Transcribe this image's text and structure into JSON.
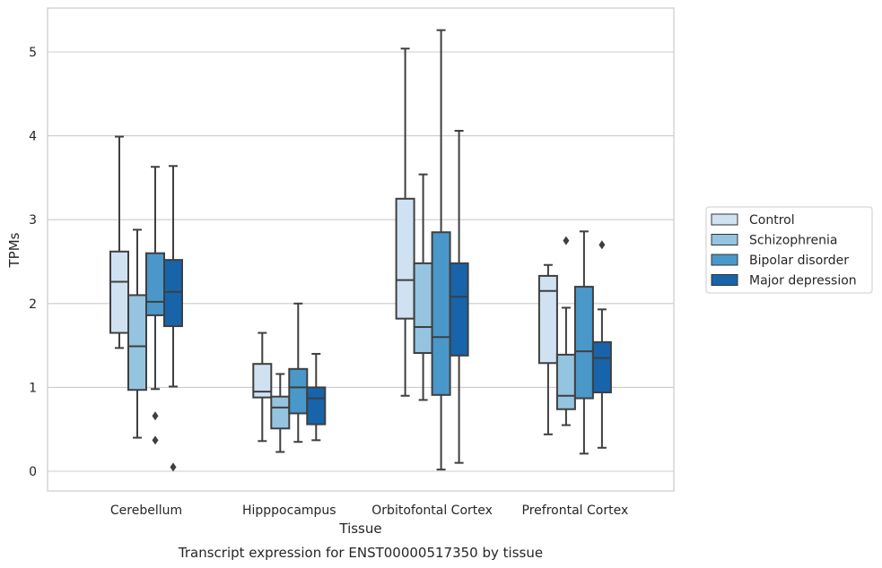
{
  "chart_data": {
    "type": "box",
    "caption": "Transcript expression for ENST00000517350 by tissue",
    "xlabel": "Tissue",
    "ylabel": "TPMs",
    "ylim": [
      -0.23,
      5.52
    ],
    "yticks": [
      0,
      1,
      2,
      3,
      4,
      5
    ],
    "grid": true,
    "legend_position": "right",
    "categories": [
      "Cerebellum",
      "Hipppocampus",
      "Orbitofontal Cortex",
      "Prefrontal Cortex"
    ],
    "series": [
      {
        "name": "Control",
        "color": "#d0e1f2",
        "boxes": [
          {
            "whislo": 1.47,
            "q1": 1.65,
            "med": 2.26,
            "q3": 2.62,
            "whishi": 3.99,
            "fliers": []
          },
          {
            "whislo": 0.36,
            "q1": 0.88,
            "med": 0.95,
            "q3": 1.28,
            "whishi": 1.65,
            "fliers": []
          },
          {
            "whislo": 0.9,
            "q1": 1.82,
            "med": 2.28,
            "q3": 3.25,
            "whishi": 5.04,
            "fliers": []
          },
          {
            "whislo": 0.44,
            "q1": 1.29,
            "med": 2.15,
            "q3": 2.33,
            "whishi": 2.46,
            "fliers": []
          }
        ]
      },
      {
        "name": "Schizophrenia",
        "color": "#94c4df",
        "boxes": [
          {
            "whislo": 0.4,
            "q1": 0.97,
            "med": 1.49,
            "q3": 2.1,
            "whishi": 2.88,
            "fliers": []
          },
          {
            "whislo": 0.23,
            "q1": 0.51,
            "med": 0.76,
            "q3": 0.89,
            "whishi": 1.16,
            "fliers": []
          },
          {
            "whislo": 0.85,
            "q1": 1.41,
            "med": 1.72,
            "q3": 2.48,
            "whishi": 3.54,
            "fliers": []
          },
          {
            "whislo": 0.55,
            "q1": 0.74,
            "med": 0.9,
            "q3": 1.39,
            "whishi": 1.95,
            "fliers": [
              2.75
            ]
          }
        ]
      },
      {
        "name": "Bipolar disorder",
        "color": "#4a98c9",
        "boxes": [
          {
            "whislo": 0.98,
            "q1": 1.86,
            "med": 2.02,
            "q3": 2.6,
            "whishi": 3.63,
            "fliers": [
              0.66,
              0.37
            ]
          },
          {
            "whislo": 0.35,
            "q1": 0.69,
            "med": 1.0,
            "q3": 1.22,
            "whishi": 2.0,
            "fliers": []
          },
          {
            "whislo": 0.02,
            "q1": 0.91,
            "med": 1.6,
            "q3": 2.85,
            "whishi": 5.26,
            "fliers": []
          },
          {
            "whislo": 0.21,
            "q1": 0.87,
            "med": 1.43,
            "q3": 2.2,
            "whishi": 2.86,
            "fliers": []
          }
        ]
      },
      {
        "name": "Major depression",
        "color": "#1764ab",
        "boxes": [
          {
            "whislo": 1.01,
            "q1": 1.73,
            "med": 2.14,
            "q3": 2.52,
            "whishi": 3.64,
            "fliers": [
              0.05
            ]
          },
          {
            "whislo": 0.37,
            "q1": 0.56,
            "med": 0.87,
            "q3": 1.0,
            "whishi": 1.4,
            "fliers": []
          },
          {
            "whislo": 0.1,
            "q1": 1.38,
            "med": 2.08,
            "q3": 2.48,
            "whishi": 4.06,
            "fliers": []
          },
          {
            "whislo": 0.28,
            "q1": 0.94,
            "med": 1.35,
            "q3": 1.54,
            "whishi": 1.93,
            "fliers": [
              2.7
            ]
          }
        ]
      }
    ]
  }
}
